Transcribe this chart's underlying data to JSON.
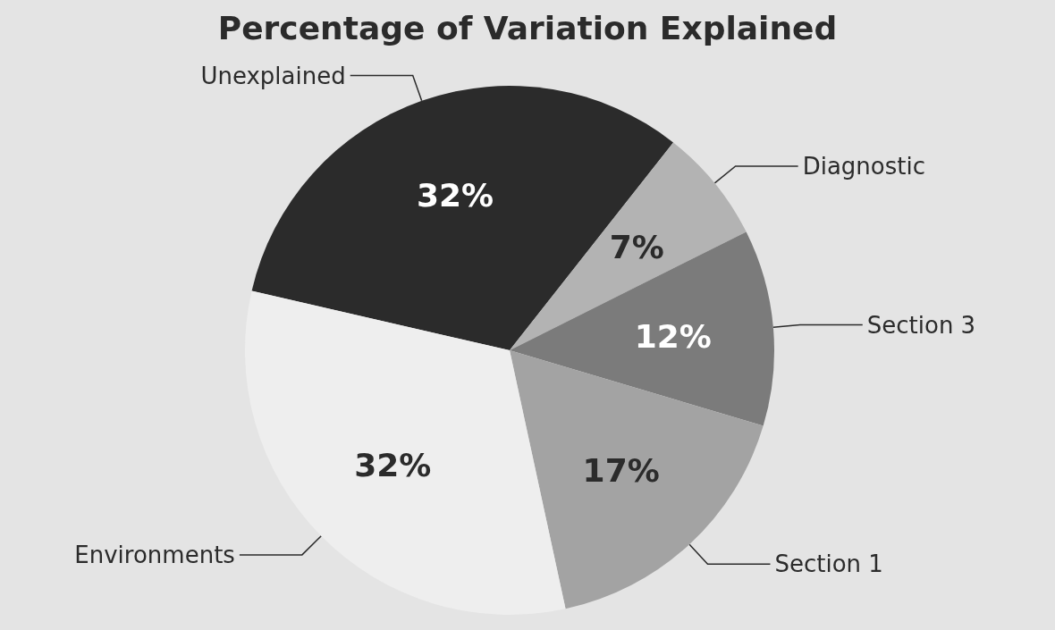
{
  "chart_data": {
    "type": "pie",
    "title": "Percentage of Variation Explained",
    "categories": [
      "Unexplained",
      "Diagnostic",
      "Section 3",
      "Section 1",
      "Environments"
    ],
    "values": [
      32,
      7,
      12,
      17,
      32
    ],
    "value_labels": [
      "32%",
      "7%",
      "12%",
      "17%",
      "32%"
    ],
    "colors": [
      "#2b2b2b",
      "#b3b3b3",
      "#7b7b7b",
      "#a3a3a3",
      "#eeeeee"
    ],
    "legend": false
  }
}
